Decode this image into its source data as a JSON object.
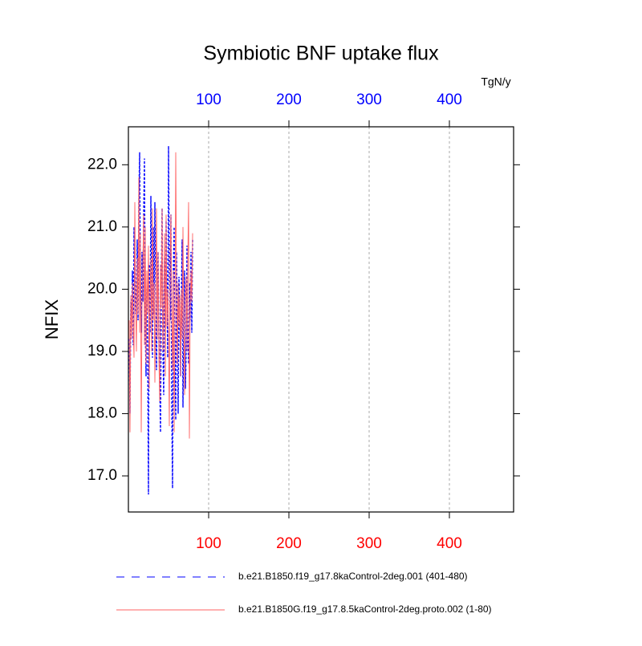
{
  "chart_data": {
    "type": "line",
    "title": "Symbiotic BNF uptake flux",
    "ylabel": "NFIX",
    "units_label": "TgN/y",
    "x": [
      1,
      2,
      3,
      4,
      5,
      6,
      7,
      8,
      9,
      10,
      11,
      12,
      13,
      14,
      15,
      16,
      17,
      18,
      19,
      20,
      21,
      22,
      23,
      24,
      25,
      26,
      27,
      28,
      29,
      30,
      31,
      32,
      33,
      34,
      35,
      36,
      37,
      38,
      39,
      40,
      41,
      42,
      43,
      44,
      45,
      46,
      47,
      48,
      49,
      50,
      51,
      52,
      53,
      54,
      55,
      56,
      57,
      58,
      59,
      60,
      61,
      62,
      63,
      64,
      65,
      66,
      67,
      68,
      69,
      70,
      71,
      72,
      73,
      74,
      75,
      76,
      77,
      78,
      79,
      80
    ],
    "series": [
      {
        "name": "b.e21.B1850.f19_g17.8kaControl-2deg.001 (401-480)",
        "color": "#0000ff",
        "dash": true,
        "values": [
          19.2,
          18.0,
          19.8,
          19.5,
          20.3,
          19.1,
          21.0,
          20.2,
          19.6,
          19.9,
          20.8,
          19.5,
          21.4,
          22.2,
          20.1,
          19.3,
          20.6,
          19.8,
          21.2,
          22.1,
          19.4,
          18.6,
          20.0,
          19.1,
          16.7,
          20.4,
          19.3,
          21.5,
          20.2,
          18.9,
          21.0,
          19.6,
          21.4,
          20.0,
          18.7,
          19.9,
          20.6,
          19.2,
          18.5,
          17.7,
          20.1,
          21.3,
          19.0,
          18.3,
          20.5,
          19.4,
          21.1,
          20.0,
          18.9,
          22.3,
          20.4,
          19.5,
          21.2,
          18.2,
          16.8,
          20.3,
          21.0,
          19.1,
          17.9,
          20.6,
          19.3,
          18.0,
          20.2,
          19.5,
          18.6,
          19.9,
          20.8,
          18.1,
          19.6,
          20.3,
          18.4,
          19.0,
          20.7,
          19.2,
          18.8,
          20.1,
          19.5,
          20.6,
          19.3,
          20.8
        ]
      },
      {
        "name": "b.e21.B1850G.f19_g17.8.5kaControl-2deg.proto.002 (1-80)",
        "color": "#ff6060",
        "dash": false,
        "values": [
          19.5,
          17.7,
          19.9,
          19.2,
          20.1,
          19.4,
          18.9,
          21.4,
          19.8,
          19.0,
          20.5,
          19.6,
          21.8,
          19.3,
          20.9,
          17.7,
          19.7,
          20.4,
          21.2,
          19.1,
          21.0,
          18.8,
          20.3,
          19.6,
          20.7,
          18.4,
          19.9,
          20.5,
          19.0,
          21.3,
          19.5,
          20.1,
          18.5,
          19.8,
          21.3,
          19.2,
          20.6,
          18.9,
          18.2,
          20.4,
          19.7,
          21.3,
          19.0,
          19.8,
          20.9,
          18.6,
          21.2,
          19.4,
          20.0,
          19.3,
          17.8,
          20.5,
          21.2,
          19.6,
          18.7,
          20.3,
          17.7,
          19.5,
          22.2,
          19.9,
          18.8,
          20.1,
          19.4,
          19.9,
          18.6,
          20.0,
          19.2,
          21.0,
          19.5,
          18.3,
          19.8,
          20.2,
          19.0,
          20.5,
          21.4,
          17.6,
          19.6,
          20.3,
          19.8,
          20.9
        ]
      }
    ],
    "xlim": [
      0,
      480
    ],
    "xticks": [
      100,
      200,
      300,
      400
    ],
    "ylim": [
      16.42,
      22.61
    ],
    "yticks": [
      {
        "value": 17,
        "label": "17.0"
      },
      {
        "value": 18,
        "label": "18.0"
      },
      {
        "value": 19,
        "label": "19.0"
      },
      {
        "value": 20,
        "label": "20.0"
      },
      {
        "value": 21,
        "label": "21.0"
      },
      {
        "value": 22,
        "label": "22.0"
      }
    ],
    "top_tick_color": "#0000ff",
    "bottom_tick_color": "#ff0000",
    "grid": "x",
    "legend": "bottom"
  }
}
